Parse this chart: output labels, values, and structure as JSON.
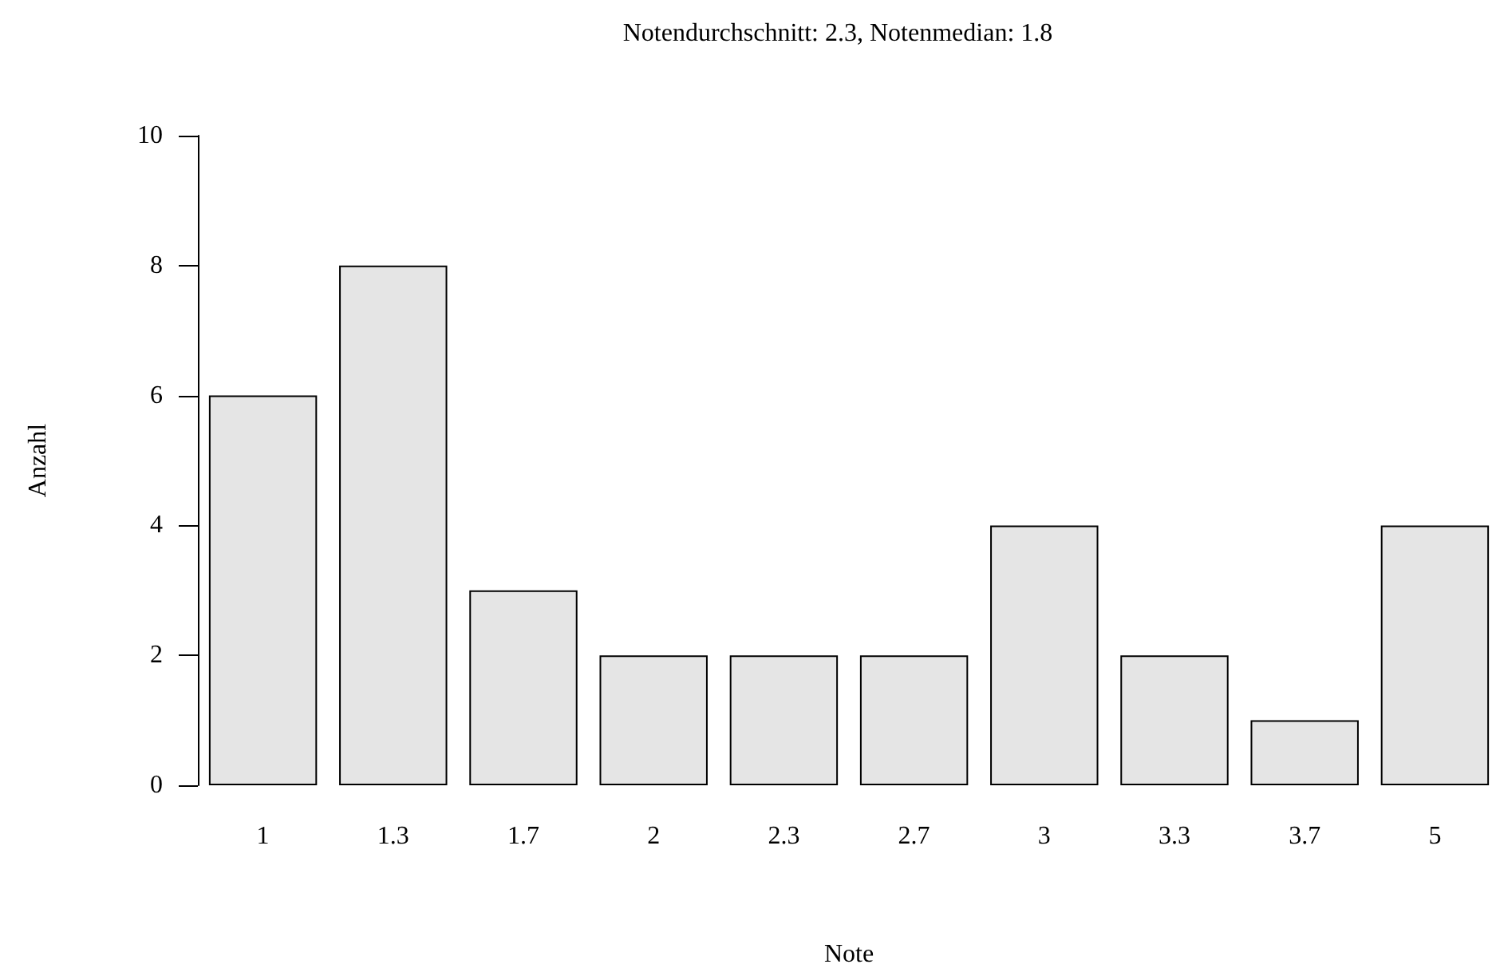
{
  "chart_data": {
    "type": "bar",
    "title": "Notendurchschnitt: 2.3, Notenmedian: 1.8",
    "xlabel": "Note",
    "ylabel": "Anzahl",
    "categories": [
      "1",
      "1.3",
      "1.7",
      "2",
      "2.3",
      "2.7",
      "3",
      "3.3",
      "3.7",
      "5"
    ],
    "values": [
      6,
      8,
      3,
      2,
      2,
      2,
      4,
      2,
      1,
      4
    ],
    "color": "#e5e5e5",
    "ylim": [
      0,
      10
    ],
    "yticks": [
      0,
      2,
      4,
      6,
      8,
      10
    ],
    "grid": false
  }
}
